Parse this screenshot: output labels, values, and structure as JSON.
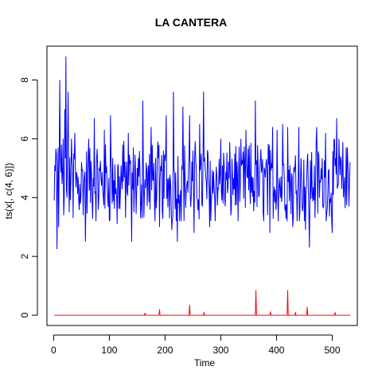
{
  "chart_data": {
    "type": "line",
    "title": "LA CANTERA",
    "xlabel": "Time",
    "ylabel": "ts(x[, c(4, 6)])",
    "xlim": [
      -12,
      545
    ],
    "ylim": [
      -0.35,
      9.15
    ],
    "x_ticks": [
      0,
      100,
      200,
      300,
      400,
      500
    ],
    "y_ticks": [
      0,
      2,
      4,
      6,
      8
    ],
    "grid": false,
    "series": [
      {
        "color": "#0000ff",
        "x_start": 1,
        "x_end": 532,
        "n": 532,
        "summary_points": [
          {
            "x": 1,
            "y": 3.9
          },
          {
            "x": 3,
            "y": 4.9
          },
          {
            "x": 6,
            "y": 2.25
          },
          {
            "x": 9,
            "y": 3.0
          },
          {
            "x": 11,
            "y": 8.0
          },
          {
            "x": 14,
            "y": 5.8
          },
          {
            "x": 16,
            "y": 4.8
          },
          {
            "x": 18,
            "y": 3.4
          },
          {
            "x": 20,
            "y": 7.0
          },
          {
            "x": 22,
            "y": 8.8
          },
          {
            "x": 24,
            "y": 4.0
          },
          {
            "x": 26,
            "y": 7.6
          },
          {
            "x": 28,
            "y": 3.5
          },
          {
            "x": 35,
            "y": 3.3
          },
          {
            "x": 38,
            "y": 6.2
          },
          {
            "x": 57,
            "y": 2.5
          },
          {
            "x": 63,
            "y": 6.0
          },
          {
            "x": 73,
            "y": 6.7
          },
          {
            "x": 91,
            "y": 6.3
          },
          {
            "x": 102,
            "y": 6.8
          },
          {
            "x": 114,
            "y": 3.1
          },
          {
            "x": 124,
            "y": 5.8
          },
          {
            "x": 134,
            "y": 6.2
          },
          {
            "x": 140,
            "y": 2.5
          },
          {
            "x": 160,
            "y": 7.3
          },
          {
            "x": 175,
            "y": 6.4
          },
          {
            "x": 190,
            "y": 3.0
          },
          {
            "x": 202,
            "y": 6.8
          },
          {
            "x": 212,
            "y": 2.9
          },
          {
            "x": 215,
            "y": 7.6
          },
          {
            "x": 222,
            "y": 2.5
          },
          {
            "x": 232,
            "y": 7.1
          },
          {
            "x": 244,
            "y": 6.8
          },
          {
            "x": 252,
            "y": 2.8
          },
          {
            "x": 262,
            "y": 6.5
          },
          {
            "x": 269,
            "y": 7.6
          },
          {
            "x": 280,
            "y": 3.0
          },
          {
            "x": 300,
            "y": 6.0
          },
          {
            "x": 325,
            "y": 5.5
          },
          {
            "x": 345,
            "y": 6.3
          },
          {
            "x": 362,
            "y": 7.3
          },
          {
            "x": 388,
            "y": 2.8
          },
          {
            "x": 393,
            "y": 6.4
          },
          {
            "x": 401,
            "y": 6.3
          },
          {
            "x": 411,
            "y": 6.5
          },
          {
            "x": 420,
            "y": 6.4
          },
          {
            "x": 429,
            "y": 3.0
          },
          {
            "x": 440,
            "y": 6.4
          },
          {
            "x": 452,
            "y": 2.9
          },
          {
            "x": 459,
            "y": 2.3
          },
          {
            "x": 472,
            "y": 6.4
          },
          {
            "x": 488,
            "y": 6.2
          },
          {
            "x": 500,
            "y": 2.8
          },
          {
            "x": 508,
            "y": 6.7
          },
          {
            "x": 512,
            "y": 6.0
          },
          {
            "x": 522,
            "y": 4.7
          },
          {
            "x": 527,
            "y": 5.7
          },
          {
            "x": 530,
            "y": 3.7
          },
          {
            "x": 532,
            "y": 5.2
          }
        ]
      },
      {
        "color": "#ff0000",
        "x_start": 1,
        "x_end": 532,
        "n": 532,
        "baseline": 0,
        "spikes": [
          {
            "x": 164,
            "y": 0.08
          },
          {
            "x": 190,
            "y": 0.2
          },
          {
            "x": 244,
            "y": 0.35
          },
          {
            "x": 270,
            "y": 0.1
          },
          {
            "x": 363,
            "y": 0.85
          },
          {
            "x": 389,
            "y": 0.12
          },
          {
            "x": 420,
            "y": 0.85
          },
          {
            "x": 434,
            "y": 0.1
          },
          {
            "x": 455,
            "y": 0.28
          },
          {
            "x": 505,
            "y": 0.1
          }
        ]
      }
    ]
  }
}
